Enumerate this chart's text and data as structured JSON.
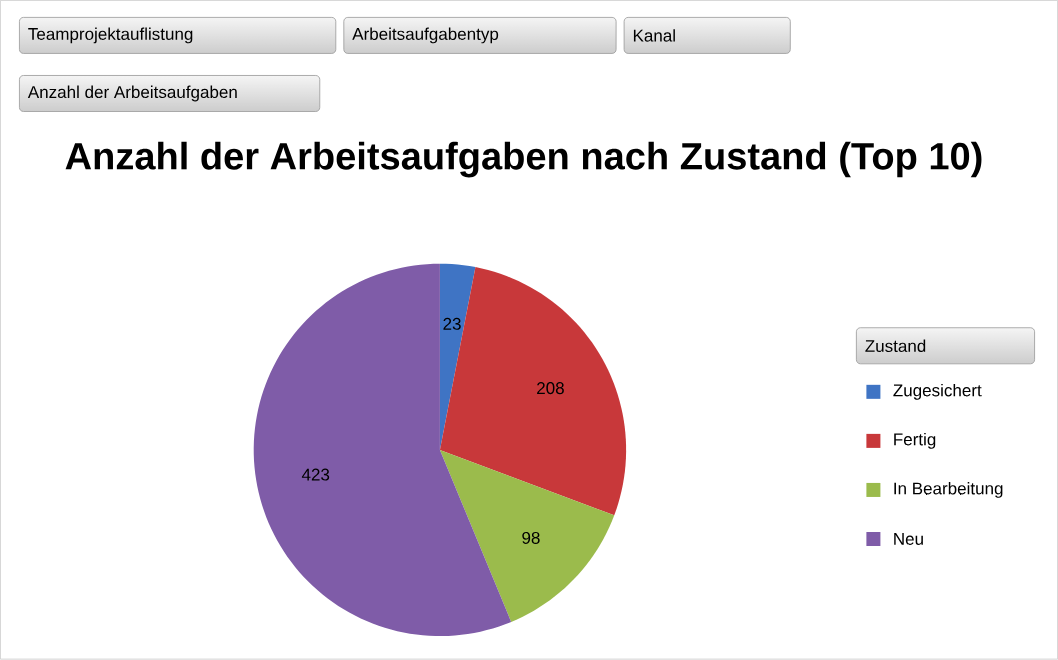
{
  "chart_data": {
    "type": "pie",
    "title": "Anzahl der Arbeitsaufgaben nach Zustand (Top 10)",
    "categories": [
      "Zugesichert",
      "Fertig",
      "In Bearbeitung",
      "Neu"
    ],
    "values": [
      23,
      208,
      98,
      423
    ],
    "colors": [
      "#3f74c4",
      "#c8383a",
      "#9bbb4c",
      "#7f5ca8"
    ],
    "data_labels": true,
    "legend": "right",
    "legend_title": "Zustand",
    "annotations": [
      "Teamprojektauflistung",
      "Arbeitsaufgabentyp",
      "Kanal",
      "Anzahl der Arbeitsaufgaben"
    ]
  }
}
